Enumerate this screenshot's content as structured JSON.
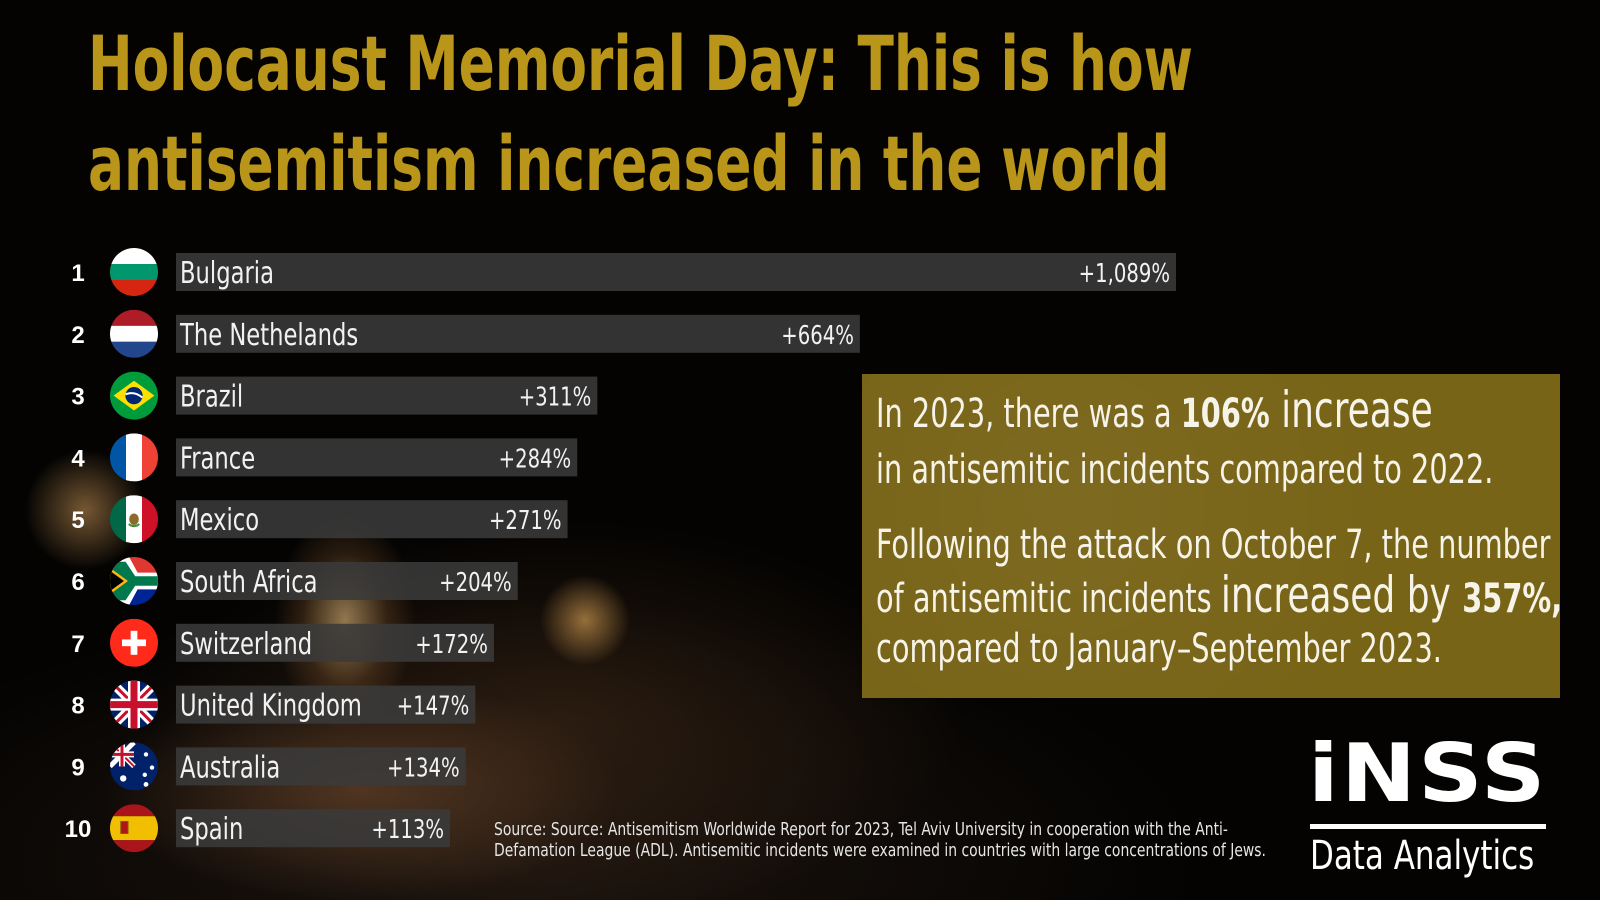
{
  "title": {
    "line1": "Holocaust Memorial Day: This is how",
    "line2": "antisemitism increased in the world"
  },
  "chart_data": {
    "type": "bar",
    "orientation": "horizontal",
    "ranks": [
      "1",
      "2",
      "3",
      "4",
      "5",
      "6",
      "7",
      "8",
      "9",
      "10"
    ],
    "categories": [
      "Bulgaria",
      "The Nethelands",
      "Brazil",
      "France",
      "Mexico",
      "South Africa",
      "Switzerland",
      "United Kingdom",
      "Australia",
      "Spain"
    ],
    "values": [
      1089,
      664,
      311,
      284,
      271,
      204,
      172,
      147,
      134,
      113
    ],
    "value_labels": [
      "+1,089%",
      "+664%",
      "+311%",
      "+284%",
      "+271%",
      "+204%",
      "+172%",
      "+147%",
      "+134%",
      "+113%"
    ],
    "flags": [
      "bulgaria-flag-icon",
      "netherlands-flag-icon",
      "brazil-flag-icon",
      "france-flag-icon",
      "mexico-flag-icon",
      "south-africa-flag-icon",
      "switzerland-flag-icon",
      "united-kingdom-flag-icon",
      "australia-flag-icon",
      "spain-flag-icon"
    ],
    "unit": "%",
    "grid": false,
    "legend": "none"
  },
  "callout": {
    "p1_pre": "In 2023, there was a ",
    "p1_pct": "106%",
    "p1_word": " increase",
    "p1_line2": "in antisemitic incidents compared to 2022.",
    "p2_line1": "Following the attack on October 7, the number",
    "p2_line2_pre": "of antisemitic incidents ",
    "p2_line2_word": "increased by ",
    "p2_line2_pct": "357%,",
    "p2_line3": "compared to January–September 2023."
  },
  "source": {
    "line1": "Source: Source: Antisemitism Worldwide Report for 2023, Tel Aviv University in cooperation with the Anti-",
    "line2": "Defamation League (ADL). Antisemitic incidents were examined in countries with large concentrations of Jews."
  },
  "logo": {
    "mark": "iNSS",
    "subtitle": "Data Analytics"
  },
  "colors": {
    "title": "#b9961a",
    "callout_bg": "#786417",
    "bar": "#3a3a3a",
    "background": "#050403"
  }
}
